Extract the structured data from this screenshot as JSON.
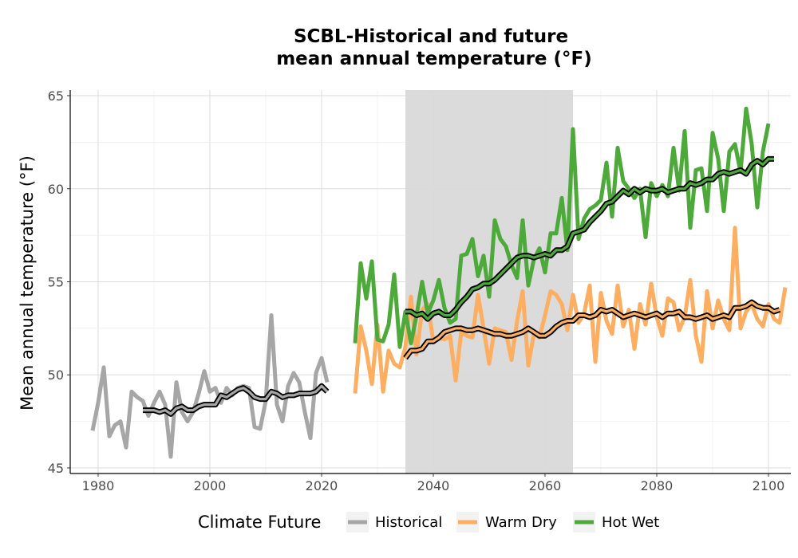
{
  "chart_data": {
    "type": "line",
    "title_lines": [
      "SCBL-Historical and future",
      "mean annual temperature (°F)"
    ],
    "xlabel": "",
    "ylabel": "Mean annual temperature (°F)",
    "xlim": [
      1975,
      2104
    ],
    "ylim": [
      44.7,
      65.3
    ],
    "x_ticks": [
      1980,
      2000,
      2020,
      2040,
      2060,
      2080,
      2100
    ],
    "y_ticks": [
      45,
      50,
      55,
      60,
      65
    ],
    "grid": true,
    "shaded_period": [
      2035,
      2065
    ],
    "shaded_color": "#d9d9d9",
    "legend": {
      "title": "Climate Future",
      "placement": "bottom"
    },
    "series": [
      {
        "name": "Historical",
        "color": "#a6a6a6",
        "x_start": 1979,
        "values": [
          47.0,
          48.5,
          50.4,
          46.7,
          47.3,
          47.5,
          46.1,
          49.1,
          48.8,
          48.6,
          47.8,
          48.5,
          49.1,
          48.4,
          45.6,
          49.6,
          48.0,
          47.5,
          48.0,
          49.0,
          50.2,
          49.1,
          49.3,
          48.5,
          49.3,
          48.9,
          49.3,
          49.4,
          49.3,
          47.2,
          47.1,
          48.6,
          53.2,
          48.4,
          47.5,
          49.4,
          50.1,
          49.6,
          48.0,
          46.6,
          50.1,
          50.9,
          49.6
        ],
        "smooth_x_start": 1988,
        "smooth": [
          48.1,
          48.1,
          48.1,
          48.0,
          48.1,
          47.9,
          48.2,
          48.3,
          48.1,
          48.1,
          48.3,
          48.4,
          48.4,
          48.4,
          48.9,
          48.8,
          49.0,
          49.2,
          49.3,
          49.1,
          48.8,
          48.7,
          48.7,
          49.1,
          49.0,
          48.8,
          48.9,
          48.9,
          49.0,
          49.0,
          49.0,
          49.1,
          49.4,
          49.1
        ]
      },
      {
        "name": "Warm Dry",
        "color": "#fdae61",
        "x_start": 2026,
        "values": [
          49.0,
          52.6,
          51.3,
          49.5,
          52.7,
          49.1,
          51.3,
          50.6,
          50.4,
          51.5,
          54.2,
          51.1,
          53.5,
          53.8,
          51.8,
          52.0,
          51.9,
          52.1,
          49.7,
          52.3,
          52.1,
          52.0,
          54.3,
          52.5,
          50.6,
          52.5,
          52.4,
          52.3,
          50.8,
          52.9,
          54.5,
          50.5,
          52.2,
          52.0,
          53.2,
          54.5,
          54.3,
          53.8,
          52.4,
          54.3,
          52.8,
          53.3,
          54.8,
          50.7,
          54.4,
          52.9,
          52.2,
          54.8,
          52.6,
          53.5,
          51.4,
          53.8,
          52.7,
          54.9,
          53.1,
          52.1,
          54.1,
          53.9,
          52.4,
          53.1,
          55.1,
          52.1,
          50.7,
          54.5,
          52.5,
          54.0,
          53.0,
          52.4,
          57.9,
          52.5,
          53.4,
          53.8,
          53.0,
          52.6,
          53.8,
          53.0,
          52.8,
          54.7
        ],
        "smooth_x_start": 2035,
        "smooth": [
          50.9,
          51.3,
          51.3,
          51.4,
          51.8,
          51.8,
          52.0,
          52.3,
          52.4,
          52.5,
          52.5,
          52.4,
          52.4,
          52.5,
          52.4,
          52.3,
          52.2,
          52.2,
          52.1,
          52.1,
          52.2,
          52.3,
          52.5,
          52.3,
          52.1,
          52.1,
          52.3,
          52.6,
          52.8,
          52.9,
          52.9,
          53.2,
          53.2,
          53.1,
          53.2,
          53.5,
          53.4,
          53.5,
          53.3,
          53.1,
          53.2,
          53.3,
          53.2,
          53.1,
          53.2,
          53.3,
          53.1,
          53.3,
          53.3,
          53.4,
          53.1,
          53.1,
          53.0,
          53.1,
          53.2,
          53.0,
          53.1,
          53.2,
          53.1,
          53.6,
          53.6,
          53.7,
          53.9,
          53.7,
          53.6,
          53.6,
          53.4,
          53.5
        ]
      },
      {
        "name": "Hot Wet",
        "color": "#4daa3a",
        "x_start": 2026,
        "values": [
          51.7,
          56.0,
          54.1,
          56.1,
          51.9,
          51.8,
          52.7,
          55.4,
          51.5,
          53.4,
          51.7,
          53.2,
          55.0,
          53.3,
          54.0,
          55.1,
          53.6,
          52.8,
          53.0,
          56.4,
          56.5,
          57.3,
          55.3,
          56.4,
          54.2,
          58.3,
          57.3,
          56.9,
          55.9,
          55.2,
          58.3,
          54.8,
          56.2,
          56.8,
          55.5,
          57.6,
          57.6,
          59.5,
          56.7,
          63.2,
          57.3,
          58.4,
          58.9,
          59.1,
          59.4,
          61.4,
          58.5,
          62.2,
          60.4,
          60.0,
          59.5,
          60.0,
          57.4,
          60.3,
          59.6,
          60.2,
          59.6,
          62.2,
          59.9,
          63.1,
          57.9,
          61.0,
          61.1,
          58.8,
          63.0,
          61.6,
          58.8,
          62.0,
          62.4,
          60.9,
          64.3,
          62.4,
          59.0,
          62.0,
          63.5
        ],
        "smooth_x_start": 2035,
        "smooth": [
          53.4,
          53.4,
          53.2,
          53.3,
          53.0,
          53.3,
          53.4,
          53.2,
          53.2,
          53.5,
          53.9,
          54.2,
          54.6,
          54.7,
          54.9,
          54.9,
          55.1,
          55.4,
          55.7,
          56.0,
          56.3,
          56.4,
          56.4,
          56.3,
          56.4,
          56.5,
          56.4,
          56.7,
          56.7,
          56.9,
          57.6,
          57.7,
          57.8,
          58.2,
          58.5,
          58.8,
          59.2,
          59.3,
          59.6,
          59.9,
          59.7,
          60.0,
          59.8,
          60.0,
          59.9,
          59.9,
          60.0,
          59.8,
          59.9,
          60.0,
          60.0,
          60.3,
          60.2,
          60.3,
          60.5,
          60.5,
          60.8,
          60.9,
          60.8,
          60.9,
          61.0,
          60.8,
          61.3,
          61.5,
          61.3,
          61.6,
          61.6
        ]
      }
    ]
  }
}
